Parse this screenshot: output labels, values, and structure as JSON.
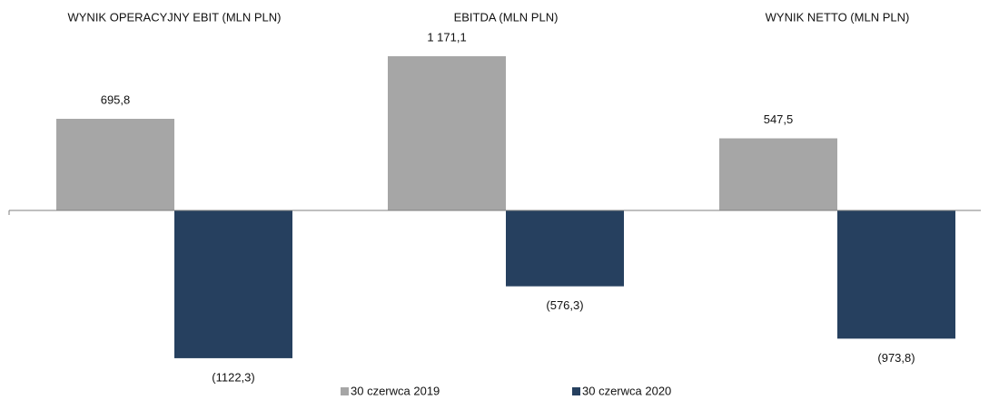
{
  "chart_data": {
    "type": "bar",
    "categories": [
      "WYNIK OPERACYJNY EBIT (MLN PLN)",
      "EBITDA (MLN PLN)",
      "WYNIK NETTO (MLN PLN)"
    ],
    "series": [
      {
        "name": "30 czerwca 2019",
        "color": "#a6a6a6",
        "values": [
          695.8,
          1171.1,
          547.5
        ],
        "value_labels": [
          "695,8",
          "1 171,1",
          "547,5"
        ]
      },
      {
        "name": "30 czerwca 2020",
        "color": "#26405f",
        "values": [
          -1122.3,
          -576.3,
          -973.8
        ],
        "value_labels": [
          "(1122,3)",
          "(576,3)",
          "(973,8)"
        ]
      }
    ],
    "legend": "bottom"
  }
}
